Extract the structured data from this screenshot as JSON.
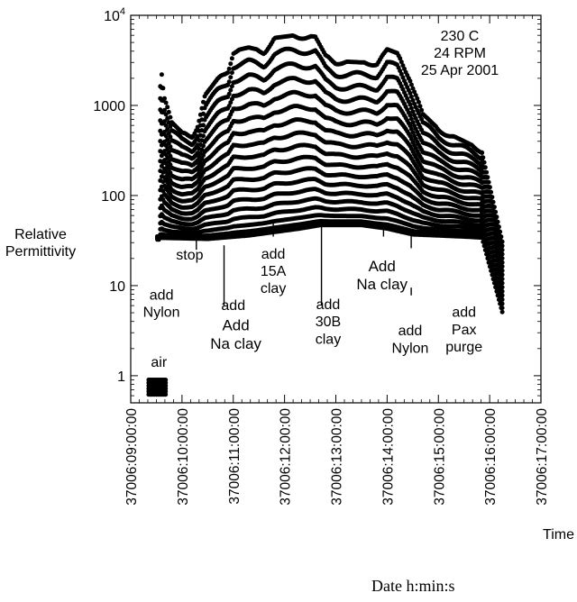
{
  "chart_data": {
    "type": "scatter",
    "title": "",
    "ylabel_lines": [
      "Relative",
      "Permittivity"
    ],
    "xlabel": "Time",
    "xlabel_sub": "Date  h:min:s",
    "yscale": "log",
    "ylim": [
      0.5,
      10000
    ],
    "xlim": [
      9.0,
      17.0
    ],
    "y_ticks": [
      {
        "value": 1,
        "label": "1"
      },
      {
        "value": 10,
        "label": "10"
      },
      {
        "value": 100,
        "label": "100"
      },
      {
        "value": 1000,
        "label": "1000"
      },
      {
        "value": 10000,
        "label": "10",
        "sup": "4"
      }
    ],
    "x_ticks": [
      {
        "value": 9,
        "label": "37006:09:00:00"
      },
      {
        "value": 10,
        "label": "37006:10:00:00"
      },
      {
        "value": 11,
        "label": "37006:11:00:00"
      },
      {
        "value": 12,
        "label": "37006:12:00:00"
      },
      {
        "value": 13,
        "label": "37006:13:00:00"
      },
      {
        "value": 14,
        "label": "37006:14:00:00"
      },
      {
        "value": 15,
        "label": "37006:15:00:00"
      },
      {
        "value": 16,
        "label": "37006:16:00:00"
      },
      {
        "value": 17,
        "label": "37006:17:00:00"
      }
    ],
    "info_lines": [
      "230 C",
      "24 RPM",
      "25 Apr 2001"
    ],
    "air_cluster": {
      "x": [
        9.35,
        9.7
      ],
      "y": [
        0.62,
        0.9
      ]
    },
    "series_top": [
      {
        "x": 9.55,
        "y": 35
      },
      {
        "x": 9.58,
        "y": 3200
      },
      {
        "x": 9.65,
        "y": 1300
      },
      {
        "x": 9.8,
        "y": 650
      },
      {
        "x": 10.0,
        "y": 500
      },
      {
        "x": 10.2,
        "y": 470
      },
      {
        "x": 10.3,
        "y": 600
      },
      {
        "x": 10.45,
        "y": 1300
      },
      {
        "x": 10.7,
        "y": 2000
      },
      {
        "x": 10.9,
        "y": 2500
      },
      {
        "x": 11.0,
        "y": 4000
      },
      {
        "x": 11.3,
        "y": 4400
      },
      {
        "x": 11.6,
        "y": 4000
      },
      {
        "x": 11.8,
        "y": 5600
      },
      {
        "x": 12.2,
        "y": 6000
      },
      {
        "x": 12.6,
        "y": 5800
      },
      {
        "x": 12.8,
        "y": 3600
      },
      {
        "x": 13.0,
        "y": 3100
      },
      {
        "x": 13.5,
        "y": 3000
      },
      {
        "x": 13.8,
        "y": 3000
      },
      {
        "x": 14.0,
        "y": 4200
      },
      {
        "x": 14.2,
        "y": 3800
      },
      {
        "x": 14.45,
        "y": 2000
      },
      {
        "x": 14.7,
        "y": 800
      },
      {
        "x": 15.0,
        "y": 550
      },
      {
        "x": 15.5,
        "y": 400
      },
      {
        "x": 15.85,
        "y": 320
      }
    ],
    "series_base": [
      {
        "x": 9.5,
        "y": 34
      },
      {
        "x": 10.5,
        "y": 33
      },
      {
        "x": 11.3,
        "y": 36
      },
      {
        "x": 12.3,
        "y": 43
      },
      {
        "x": 12.7,
        "y": 47
      },
      {
        "x": 13.5,
        "y": 47
      },
      {
        "x": 14.0,
        "y": 43
      },
      {
        "x": 14.5,
        "y": 37
      },
      {
        "x": 15.5,
        "y": 35
      },
      {
        "x": 15.9,
        "y": 34
      }
    ],
    "dropoff": {
      "x": [
        15.85,
        16.25
      ],
      "top_y": [
        300,
        30
      ],
      "bottom_y": [
        34,
        5
      ]
    },
    "num_bands": 18,
    "event_markers": [
      {
        "x": 10.28,
        "y_from": 40,
        "y_to": 25
      },
      {
        "x": 10.82,
        "y_from": 28,
        "y_to": 6
      },
      {
        "x": 11.78,
        "y_from": 50,
        "y_to": 35
      },
      {
        "x": 12.72,
        "y_from": 45,
        "y_to": 6
      },
      {
        "x": 13.93,
        "y_from": 50,
        "y_to": 35
      },
      {
        "x": 14.47,
        "y_from": 42,
        "y_to": 26
      },
      {
        "x": 14.47,
        "y_from": 9.5,
        "y_to": 7.8
      }
    ],
    "annotations": [
      {
        "lines": [
          "air"
        ],
        "x": 9.55,
        "y": 1.25,
        "size": 16
      },
      {
        "lines": [
          "add",
          "Nylon"
        ],
        "x": 9.6,
        "y": 7.0,
        "size": 16
      },
      {
        "lines": [
          "stop"
        ],
        "x": 10.15,
        "y": 19.5,
        "size": 16
      },
      {
        "lines": [
          "add"
        ],
        "x": 11.0,
        "y": 5.35,
        "size": 16,
        "clip": true
      },
      {
        "lines": [
          "Add",
          "Na clay"
        ],
        "x": 11.05,
        "y": 3.2,
        "size": 17
      },
      {
        "lines": [
          "add",
          "15A",
          "clay"
        ],
        "x": 11.78,
        "y": 20,
        "size": 16
      },
      {
        "lines": [
          "add",
          "30B",
          "clay"
        ],
        "x": 12.85,
        "y": 5.5,
        "size": 16
      },
      {
        "lines": [
          "Add",
          "Na clay"
        ],
        "x": 13.9,
        "y": 14.5,
        "size": 17
      },
      {
        "lines": [
          "add",
          "Nylon"
        ],
        "x": 14.45,
        "y": 2.8,
        "size": 16
      },
      {
        "lines": [
          "add",
          "Pax",
          "purge"
        ],
        "x": 15.5,
        "y": 4.5,
        "size": 16
      }
    ]
  }
}
